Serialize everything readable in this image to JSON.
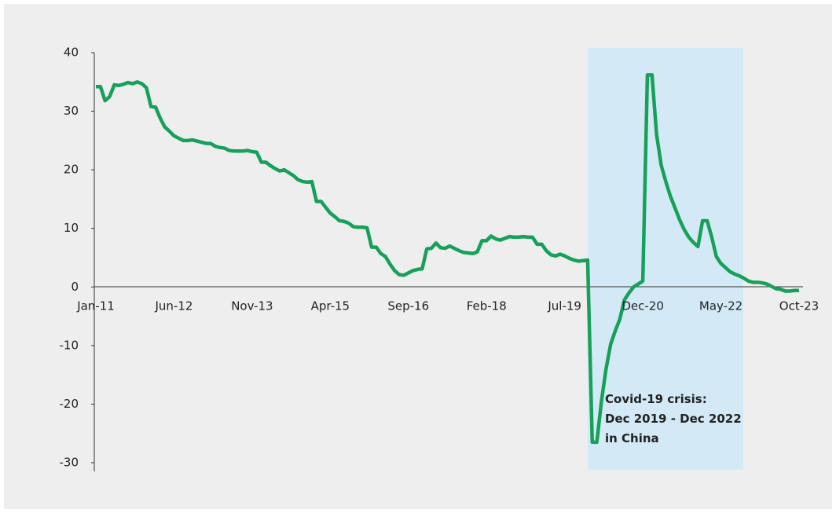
{
  "chart_data": {
    "type": "line",
    "categories": [
      "Jan-11",
      null,
      null,
      null,
      null,
      null,
      null,
      null,
      null,
      null,
      null,
      null,
      null,
      null,
      null,
      null,
      null,
      "Jun-12",
      null,
      null,
      null,
      null,
      null,
      null,
      null,
      null,
      null,
      null,
      null,
      null,
      null,
      null,
      null,
      null,
      "Nov-13",
      null,
      null,
      null,
      null,
      null,
      null,
      null,
      null,
      null,
      null,
      null,
      null,
      null,
      null,
      null,
      null,
      "Apr-15",
      null,
      null,
      null,
      null,
      null,
      null,
      null,
      null,
      null,
      null,
      null,
      null,
      null,
      null,
      null,
      null,
      "Sep-16",
      null,
      null,
      null,
      null,
      null,
      null,
      null,
      null,
      null,
      null,
      null,
      null,
      null,
      null,
      null,
      null,
      "Feb-18",
      null,
      null,
      null,
      null,
      null,
      null,
      null,
      null,
      null,
      null,
      null,
      null,
      null,
      null,
      null,
      null,
      "Jul-19",
      null,
      null,
      null,
      null,
      null,
      null,
      null,
      null,
      null,
      null,
      null,
      null,
      null,
      null,
      null,
      null,
      "Dec-20",
      null,
      null,
      null,
      null,
      null,
      null,
      null,
      null,
      null,
      null,
      null,
      null,
      null,
      null,
      null,
      null,
      "May-22",
      null,
      null,
      null,
      null,
      null,
      null,
      null,
      null,
      null,
      null,
      null,
      null,
      null,
      null,
      null,
      null,
      "Oct-23"
    ],
    "values": [
      34.2,
      34.2,
      31.8,
      32.5,
      34.5,
      34.4,
      34.6,
      34.9,
      34.7,
      35.0,
      34.7,
      34.0,
      30.8,
      30.7,
      28.8,
      27.3,
      26.6,
      25.8,
      25.4,
      25.0,
      25.0,
      25.1,
      24.9,
      24.7,
      24.5,
      24.5,
      24.0,
      23.8,
      23.7,
      23.3,
      23.2,
      23.2,
      23.2,
      23.3,
      23.1,
      23.0,
      21.3,
      21.3,
      20.7,
      20.2,
      19.8,
      20.0,
      19.5,
      19.0,
      18.3,
      18.0,
      17.9,
      18.0,
      14.6,
      14.6,
      13.6,
      12.6,
      12.0,
      11.3,
      11.2,
      10.9,
      10.3,
      10.2,
      10.2,
      10.1,
      6.8,
      6.8,
      5.7,
      5.2,
      3.9,
      2.8,
      2.1,
      2.0,
      2.4,
      2.8,
      3.0,
      3.1,
      6.5,
      6.6,
      7.5,
      6.7,
      6.6,
      7.0,
      6.6,
      6.2,
      5.9,
      5.8,
      5.7,
      6.0,
      7.9,
      7.9,
      8.7,
      8.2,
      8.0,
      8.3,
      8.6,
      8.5,
      8.5,
      8.6,
      8.5,
      8.5,
      7.3,
      7.3,
      6.2,
      5.5,
      5.3,
      5.6,
      5.3,
      4.9,
      4.6,
      4.4,
      4.5,
      4.6,
      -26.5,
      -26.5,
      -19.5,
      -14,
      -9.8,
      -7.5,
      -5.5,
      -2.2,
      -1.0,
      0,
      0.5,
      1.0,
      36.2,
      36.2,
      26,
      20.8,
      18,
      15.5,
      13.5,
      11.5,
      9.8,
      8.5,
      7.6,
      6.9,
      11.3,
      11.3,
      8.5,
      5.2,
      4.0,
      3.3,
      2.6,
      2.2,
      1.9,
      1.5,
      1.0,
      0.8,
      0.8,
      0.7,
      0.5,
      0.1,
      -0.3,
      -0.4,
      -0.7,
      -0.7,
      -0.6,
      -0.6
    ],
    "color": "#17a05a",
    "ylim": [
      -30,
      40
    ],
    "yticks": [
      -30,
      -20,
      -10,
      0,
      10,
      20,
      30,
      40
    ],
    "annotation": [
      "Covid-19 crisis:",
      "Dec 2019 - Dec 2022",
      "in China"
    ]
  }
}
